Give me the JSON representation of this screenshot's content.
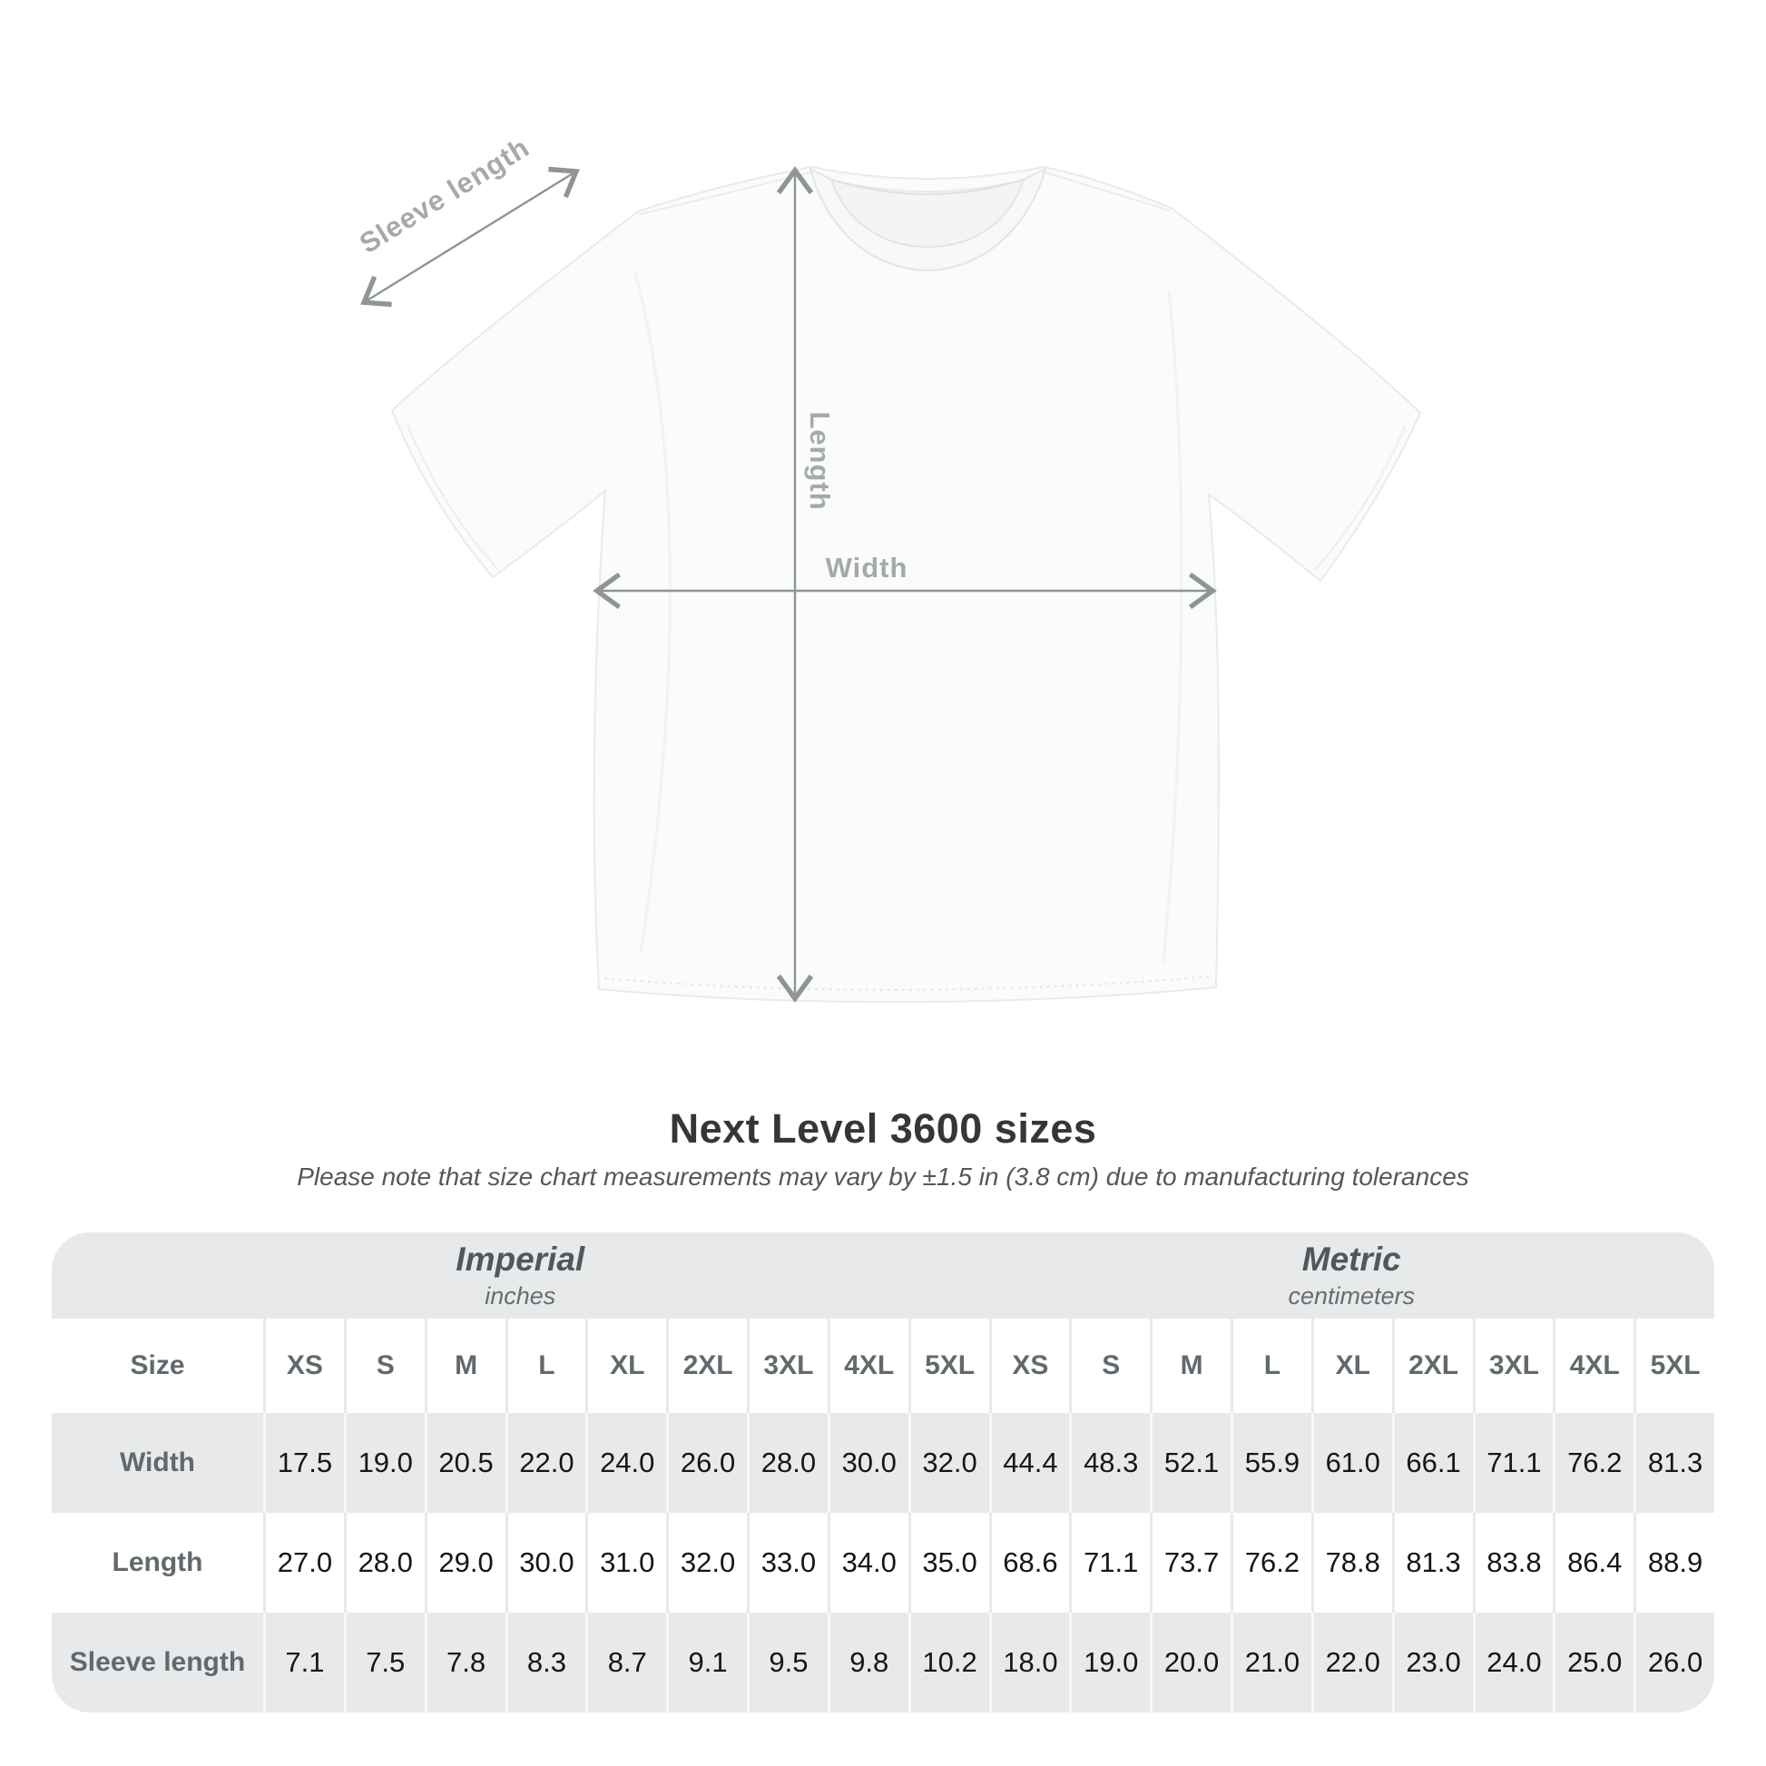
{
  "diagram": {
    "labels": {
      "sleeve_length": "Sleeve length",
      "length": "Length",
      "width": "Width"
    },
    "arrow_color": "#8f9496",
    "label_color": "#a5a9ab"
  },
  "title": "Next Level 3600 sizes",
  "subtitle": "Please note that size chart measurements may vary by ±1.5 in (3.8 cm) due to manufacturing tolerances",
  "table": {
    "corner_label": "Size",
    "unit_groups": [
      {
        "name": "Imperial",
        "unit": "inches"
      },
      {
        "name": "Metric",
        "unit": "centimeters"
      }
    ],
    "size_headers": [
      "XS",
      "S",
      "M",
      "L",
      "XL",
      "2XL",
      "3XL",
      "4XL",
      "5XL",
      "XS",
      "S",
      "M",
      "L",
      "XL",
      "2XL",
      "3XL",
      "4XL",
      "5XL"
    ],
    "rows": [
      {
        "label": "Width",
        "values": [
          "17.5",
          "19.0",
          "20.5",
          "22.0",
          "24.0",
          "26.0",
          "28.0",
          "30.0",
          "32.0",
          "44.4",
          "48.3",
          "52.1",
          "55.9",
          "61.0",
          "66.1",
          "71.1",
          "76.2",
          "81.3"
        ]
      },
      {
        "label": "Length",
        "values": [
          "27.0",
          "28.0",
          "29.0",
          "30.0",
          "31.0",
          "32.0",
          "33.0",
          "34.0",
          "35.0",
          "68.6",
          "71.1",
          "73.7",
          "76.2",
          "78.8",
          "81.3",
          "83.8",
          "86.4",
          "88.9"
        ]
      },
      {
        "label": "Sleeve length",
        "values": [
          "7.1",
          "7.5",
          "7.8",
          "8.3",
          "8.7",
          "9.1",
          "9.5",
          "9.8",
          "10.2",
          "18.0",
          "19.0",
          "20.0",
          "21.0",
          "22.0",
          "23.0",
          "24.0",
          "25.0",
          "26.0"
        ]
      }
    ],
    "colors": {
      "table_background": "#e8e9ea",
      "row_white": "#ffffff",
      "header_text": "#62696d",
      "value_text": "#161616"
    }
  }
}
